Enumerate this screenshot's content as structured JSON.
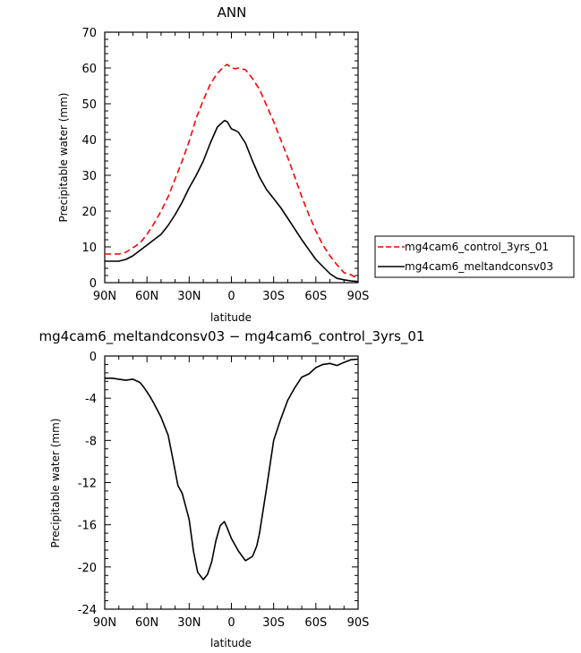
{
  "chart_data": [
    {
      "type": "line",
      "title": "ANN",
      "xlabel": "latitude",
      "ylabel": "Precipitable water (mm)",
      "xlim": [
        90,
        -90
      ],
      "ylim": [
        0,
        70
      ],
      "xticks": [
        90,
        60,
        30,
        0,
        -30,
        -60,
        -90
      ],
      "xtick_labels": [
        "90N",
        "60N",
        "30N",
        "0",
        "30S",
        "60S",
        "90S"
      ],
      "yticks": [
        0,
        10,
        20,
        30,
        40,
        50,
        60,
        70
      ],
      "ytick_labels": [
        "0",
        "10",
        "20",
        "30",
        "40",
        "50",
        "60",
        "70"
      ],
      "legend_position": "right",
      "series": [
        {
          "name": "mg4cam6_control_3yrs_01",
          "color": "#ff0000",
          "style": "dashed",
          "x": [
            90,
            80,
            75,
            70,
            65,
            60,
            55,
            50,
            45,
            40,
            35,
            30,
            25,
            20,
            15,
            10,
            5,
            3,
            0,
            -3,
            -5,
            -10,
            -15,
            -20,
            -25,
            -30,
            -35,
            -40,
            -45,
            -50,
            -55,
            -60,
            -65,
            -70,
            -75,
            -80,
            -85,
            -90
          ],
          "y": [
            8,
            8,
            8.5,
            9.8,
            11,
            13.5,
            16.5,
            20,
            24,
            29,
            34,
            39.5,
            46,
            51,
            55.5,
            58.5,
            60.5,
            61,
            60,
            59.8,
            60,
            59.5,
            57,
            54,
            49.5,
            45,
            40,
            35,
            29.5,
            24,
            19,
            14.5,
            10.5,
            7.5,
            5,
            2.8,
            2.2,
            1
          ]
        },
        {
          "name": "mg4cam6_meltandconsv03",
          "color": "#000000",
          "style": "solid",
          "x": [
            90,
            80,
            75,
            70,
            65,
            60,
            55,
            50,
            45,
            40,
            35,
            30,
            25,
            20,
            15,
            10,
            5,
            3,
            0,
            -3,
            -5,
            -10,
            -15,
            -20,
            -25,
            -30,
            -35,
            -40,
            -45,
            -50,
            -55,
            -60,
            -65,
            -70,
            -75,
            -80,
            -85,
            -90
          ],
          "y": [
            6,
            6,
            6.5,
            7.5,
            9,
            10.5,
            12,
            13.5,
            16,
            19,
            22.5,
            26.5,
            30,
            34,
            39,
            43.5,
            45.3,
            45,
            43,
            42.5,
            42,
            39,
            34,
            29.5,
            26,
            23.5,
            21,
            18,
            15,
            12,
            9.2,
            6.5,
            4.5,
            2.5,
            1.2,
            0.8,
            0.5,
            0.3
          ]
        }
      ]
    },
    {
      "type": "line",
      "title": "mg4cam6_meltandconsv03 − mg4cam6_control_3yrs_01",
      "xlabel": "latitude",
      "ylabel": "Precipitable water (mm)",
      "xlim": [
        90,
        -90
      ],
      "ylim": [
        -24,
        0
      ],
      "xticks": [
        90,
        60,
        30,
        0,
        -30,
        -60,
        -90
      ],
      "xtick_labels": [
        "90N",
        "60N",
        "30N",
        "0",
        "30S",
        "60S",
        "90S"
      ],
      "yticks": [
        0,
        -4,
        -8,
        -12,
        -16,
        -20,
        -24
      ],
      "ytick_labels": [
        "0",
        "-4",
        "-8",
        "-12",
        "-16",
        "-20",
        "-24"
      ],
      "series": [
        {
          "color": "#000000",
          "style": "solid",
          "x": [
            90,
            85,
            80,
            75,
            70,
            65,
            62,
            58,
            55,
            50,
            45,
            42,
            38,
            35,
            30,
            27,
            24,
            20,
            17,
            14,
            11,
            8,
            5,
            3,
            0,
            -5,
            -10,
            -15,
            -18,
            -20,
            -25,
            -30,
            -35,
            -40,
            -45,
            -50,
            -55,
            -60,
            -65,
            -70,
            -75,
            -80,
            -85,
            -90
          ],
          "y": [
            -2.1,
            -2.1,
            -2.2,
            -2.3,
            -2.2,
            -2.5,
            -3,
            -3.8,
            -4.5,
            -5.8,
            -7.5,
            -9.5,
            -12.3,
            -13,
            -15.5,
            -18.5,
            -20.5,
            -21.2,
            -20.7,
            -19.5,
            -17.5,
            -16.1,
            -15.7,
            -16.3,
            -17.3,
            -18.5,
            -19.4,
            -19,
            -18,
            -16.8,
            -12.5,
            -8,
            -6,
            -4.2,
            -3,
            -2,
            -1.7,
            -1.1,
            -0.8,
            -0.7,
            -0.9,
            -0.6,
            -0.35,
            -0.3
          ]
        }
      ]
    }
  ]
}
